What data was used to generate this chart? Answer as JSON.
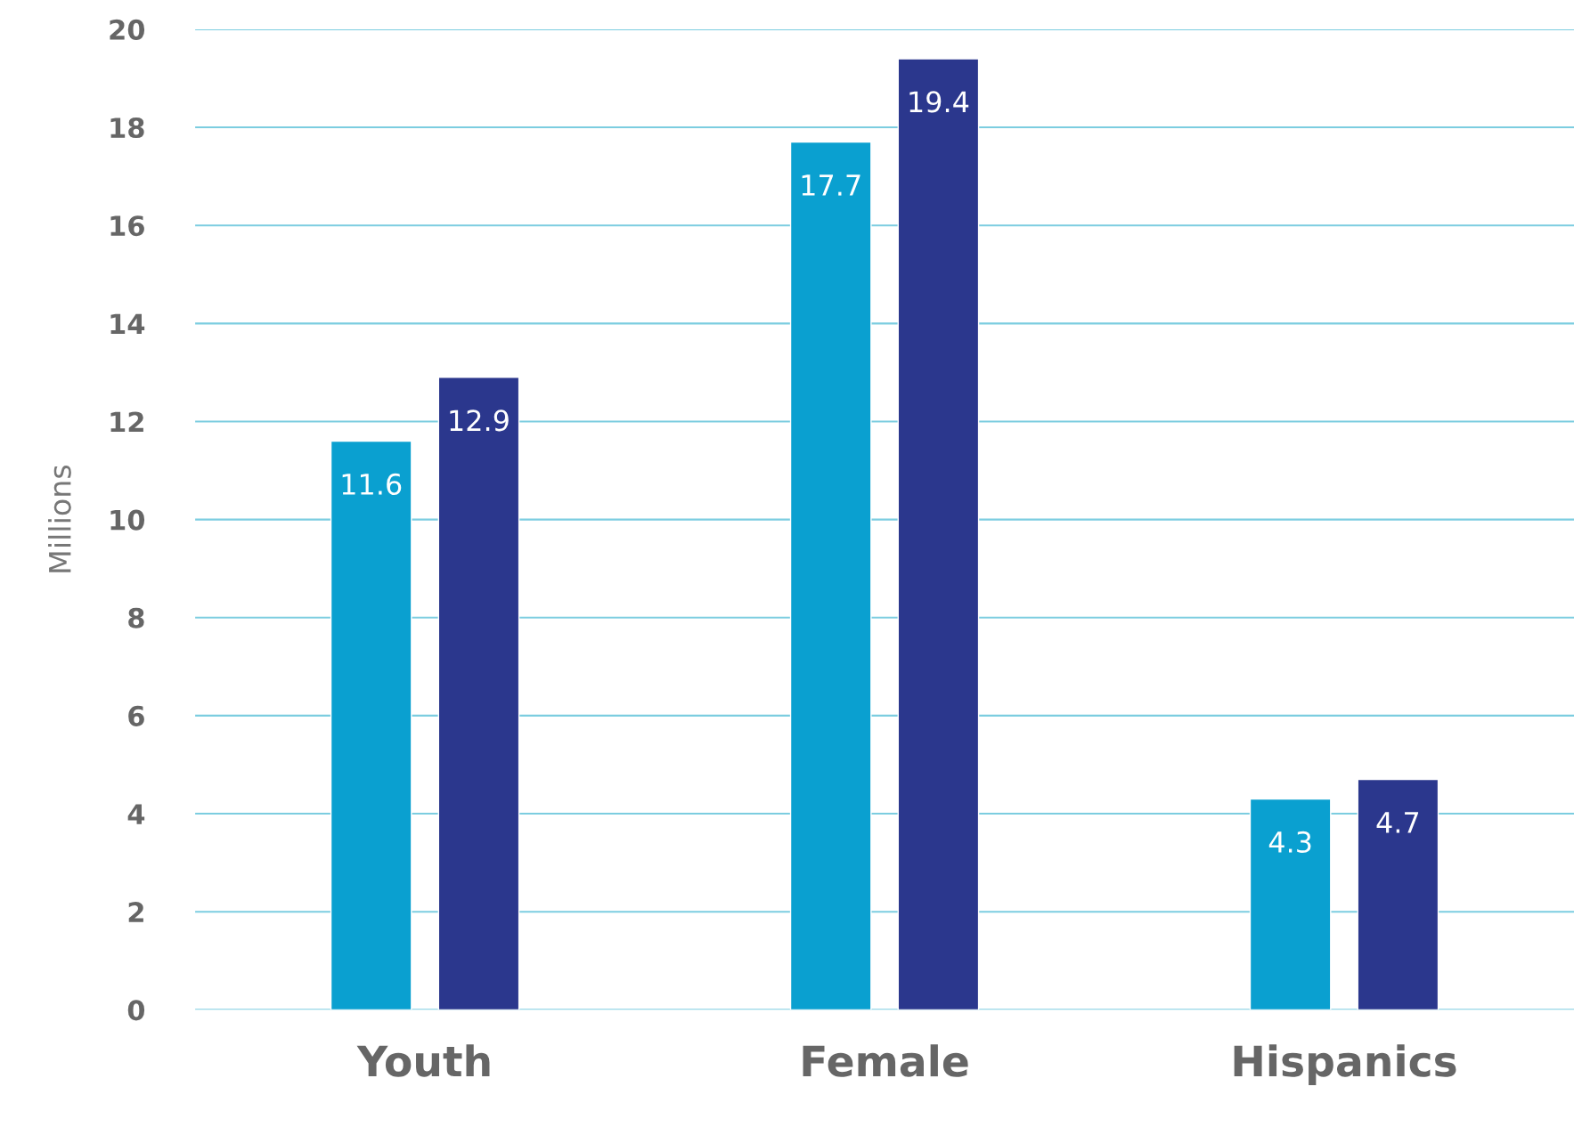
{
  "chart_data": {
    "type": "bar",
    "ylabel": "Millions",
    "categories": [
      "Youth",
      "Female",
      "Hispanics"
    ],
    "series": [
      {
        "color": "#0aa0d0",
        "values": [
          11.6,
          17.7,
          4.3
        ]
      },
      {
        "color": "#2b378d",
        "values": [
          12.9,
          19.4,
          4.7
        ]
      }
    ],
    "ylim": [
      0,
      20
    ],
    "yticks": [
      0,
      2,
      4,
      6,
      8,
      10,
      12,
      14,
      16,
      18,
      20
    ],
    "grid": "y",
    "data_labels": true,
    "legend": false
  }
}
